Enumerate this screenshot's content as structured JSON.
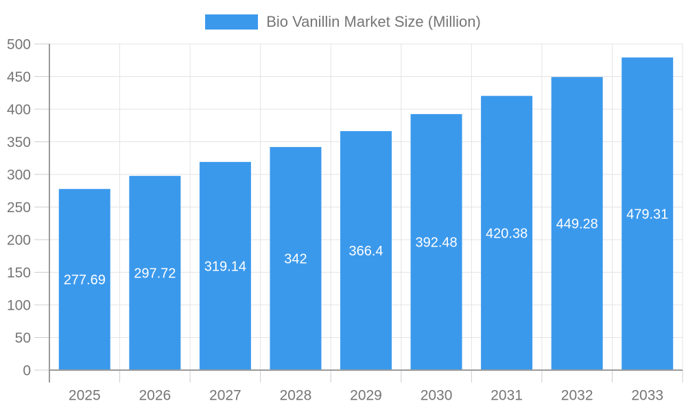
{
  "chart_data": {
    "type": "bar",
    "title": "Bio Vanillin Market Size (Million)",
    "categories": [
      "2025",
      "2026",
      "2027",
      "2028",
      "2029",
      "2030",
      "2031",
      "2032",
      "2033"
    ],
    "values": [
      277.69,
      297.72,
      319.14,
      342,
      366.4,
      392.48,
      420.38,
      449.28,
      479.31
    ],
    "series": [
      {
        "name": "Bio Vanillin Market Size (Million)",
        "values": [
          277.69,
          297.72,
          319.14,
          342,
          366.4,
          392.48,
          420.38,
          449.28,
          479.31
        ]
      }
    ],
    "xlabel": "",
    "ylabel": "",
    "ylim": [
      0,
      500
    ],
    "yticks": [
      0,
      50,
      100,
      150,
      200,
      250,
      300,
      350,
      400,
      450,
      500
    ],
    "grid": true,
    "legend_position": "top",
    "value_labels_inside_bars": true,
    "colors": {
      "bar": "#3B99EC",
      "value_label": "#FFFFFF",
      "axis_line": "#9A9A9A",
      "grid_line": "#E3E3E3",
      "tick_mark": "#CCCCCC",
      "tick_label": "#757575",
      "legend_text": "#757575",
      "background": "#FFFFFF"
    }
  }
}
